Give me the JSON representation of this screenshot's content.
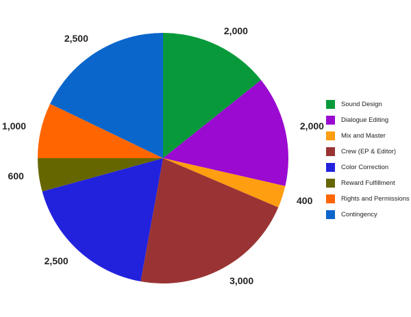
{
  "chart_data": {
    "type": "pie",
    "title": "",
    "categories": [
      "Sound Design",
      "Dialogue Editing",
      "Mix and Master",
      "Crew (EP & Editor)",
      "Color Correction",
      "Reward Fulfillment",
      "Rights and Permissions",
      "Contingency"
    ],
    "values": [
      2000,
      2000,
      400,
      3000,
      2500,
      600,
      1000,
      2500
    ],
    "data_labels": [
      "2,000",
      "2,000",
      "400",
      "3,000",
      "2,500",
      "600",
      "1,000",
      "2,500"
    ],
    "colors": [
      "#089a3a",
      "#9a0ad0",
      "#ff9e10",
      "#9a3434",
      "#2222dd",
      "#666600",
      "#ff6600",
      "#0b66cc"
    ],
    "legend_position": "right",
    "start_angle_deg": 0,
    "direction": "clockwise"
  }
}
